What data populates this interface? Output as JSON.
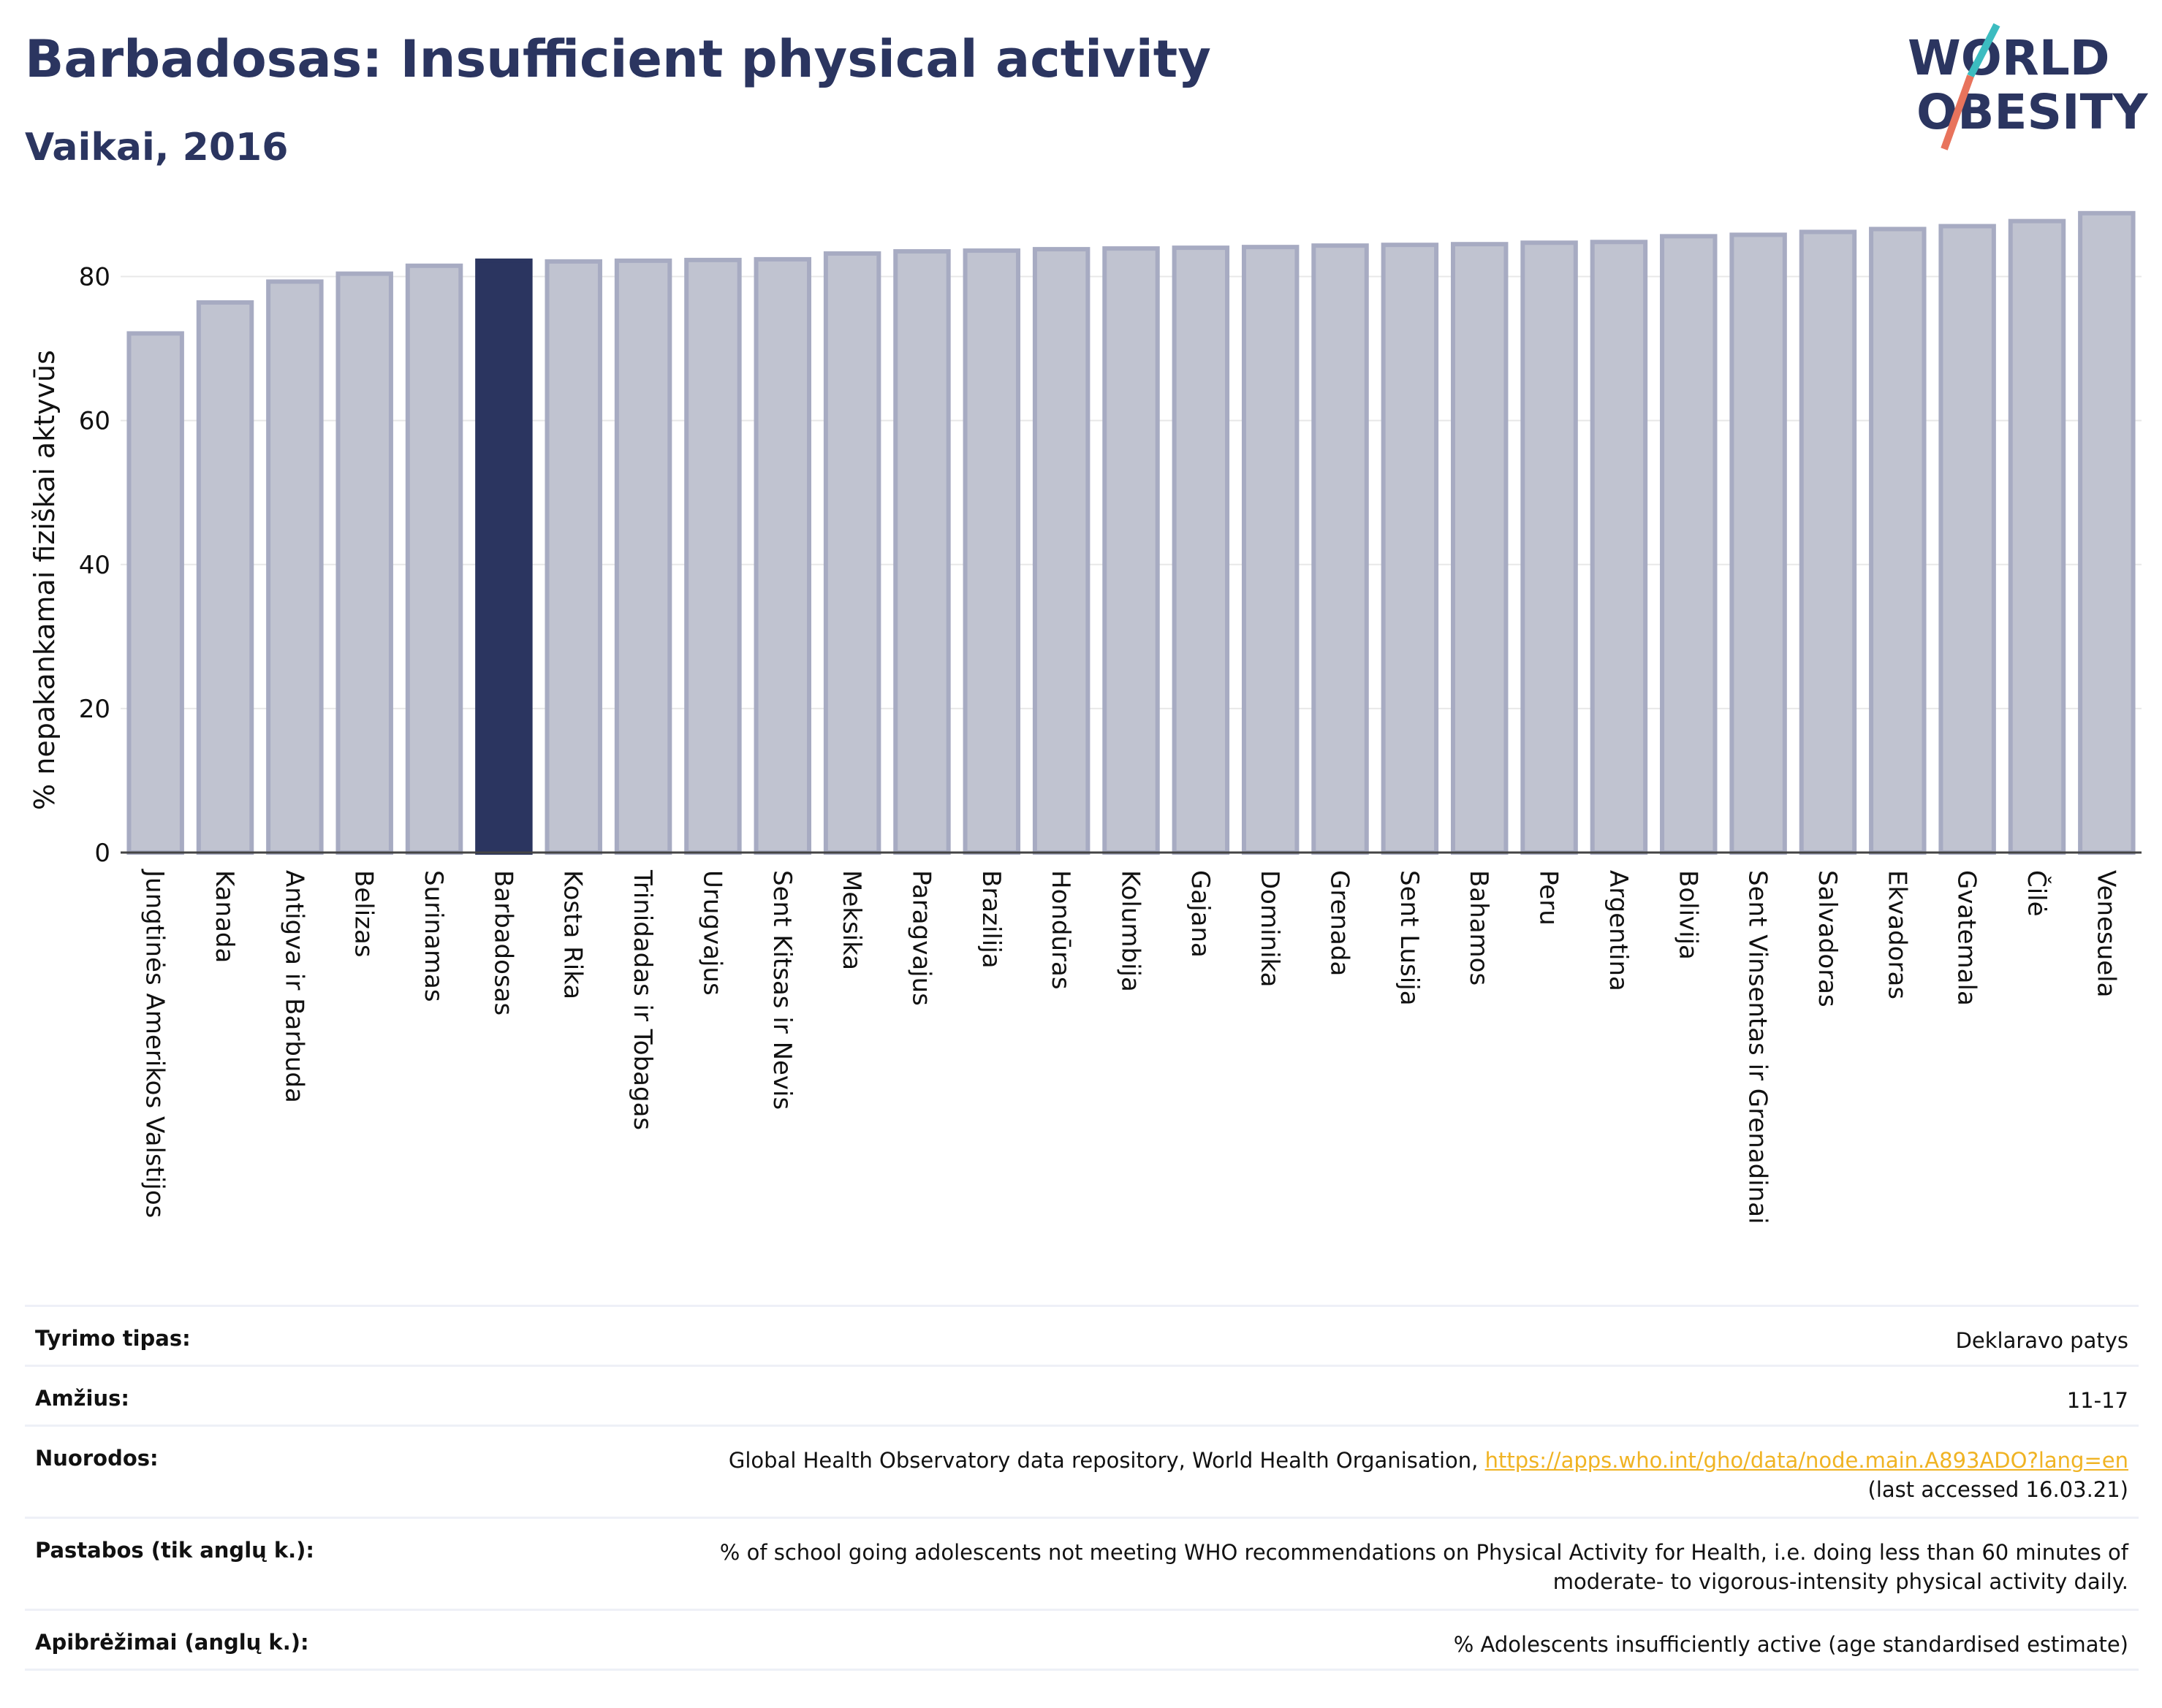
{
  "header": {
    "title": "Barbadosas: Insufficient physical activity",
    "subtitle": "Vaikai, 2016",
    "logo_text": [
      "WORLD",
      "OBESITY"
    ]
  },
  "colors": {
    "highlight": "#2b3560",
    "bar_fill": "#c0c3d0",
    "bar_stroke": "#a7abc2",
    "grid": "#e8e8e8",
    "logo_teal": "#3cbcc0",
    "logo_coral": "#e8735c",
    "link": "#f0b323"
  },
  "chart_data": {
    "type": "bar",
    "ylabel": "% nepakankamai fiziškai aktyvūs",
    "ylim": [
      0,
      90
    ],
    "yticks": [
      0,
      20,
      40,
      60,
      80
    ],
    "grid": true,
    "highlight": "Barbadosas",
    "categories": [
      "Jungtinės Amerikos Valstijos",
      "Kanada",
      "Antigva ir Barbuda",
      "Belizas",
      "Surinamas",
      "Barbadosas",
      "Kosta Rika",
      "Trinidadas ir Tobagas",
      "Urugvajus",
      "Sent Kitsas ir Nevis",
      "Meksika",
      "Paragvajus",
      "Brazilija",
      "Hondūras",
      "Kolumbija",
      "Gajana",
      "Dominika",
      "Grenada",
      "Sent Lusija",
      "Bahamos",
      "Peru",
      "Argentina",
      "Bolivija",
      "Sent Vinsentas ir Grenadinai",
      "Salvadoras",
      "Ekvadoras",
      "Gvatemala",
      "Čilė",
      "Venesuela"
    ],
    "values": [
      72.1,
      76.4,
      79.3,
      80.4,
      81.5,
      82.2,
      82.1,
      82.2,
      82.3,
      82.4,
      83.2,
      83.5,
      83.6,
      83.8,
      83.9,
      84.0,
      84.1,
      84.3,
      84.4,
      84.5,
      84.7,
      84.8,
      85.6,
      85.8,
      86.2,
      86.6,
      87.0,
      87.7,
      88.8
    ]
  },
  "info_table": {
    "rows": [
      {
        "label": "Tyrimo tipas:",
        "value": "Deklaravo patys"
      },
      {
        "label": "Amžius:",
        "value": "11-17"
      },
      {
        "label": "Nuorodos:",
        "value": "Global Health Observatory data repository, World Health Organisation, ",
        "link": "https://apps.who.int/gho/data/node.main.A893ADO?lang=en",
        "value2": "(last accessed 16.03.21)"
      },
      {
        "label": "Pastabos (tik anglų k.):",
        "value": "% of school going adolescents not meeting WHO recommendations on Physical Activity for Health, i.e. doing less than 60 minutes of",
        "value2": "moderate- to vigorous-intensity physical activity daily."
      },
      {
        "label": "Apibrėžimai (anglų k.):",
        "value": "% Adolescents insufficiently active (age standardised estimate)"
      }
    ]
  }
}
